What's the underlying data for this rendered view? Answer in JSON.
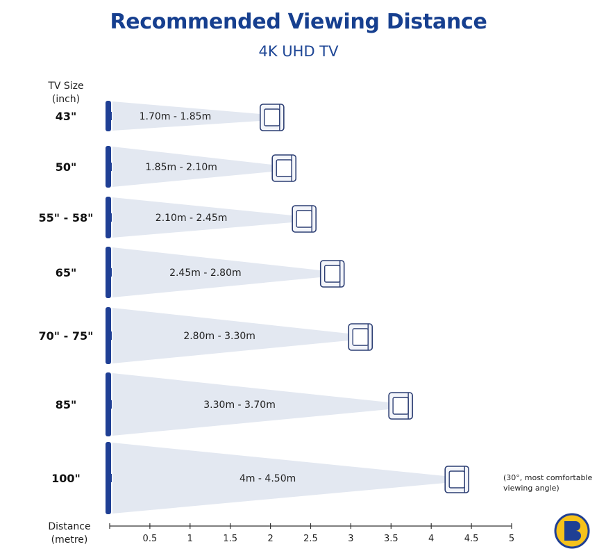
{
  "chart_data": {
    "type": "bar",
    "title": "Recommended Viewing Distance",
    "subtitle": "4K UHD TV",
    "ylabel_lines": [
      "TV Size",
      "(inch)"
    ],
    "xlabel_lines": [
      "Distance",
      "(metre)"
    ],
    "categories": [
      "43\"",
      "50\"",
      "55\" - 58\"",
      "65\"",
      "70\" - 75\"",
      "85\"",
      "100\""
    ],
    "range_labels": [
      "1.70m - 1.85m",
      "1.85m - 2.10m",
      "2.10m - 2.45m",
      "2.45m - 2.80m",
      "2.80m - 3.30m",
      "3.30m - 3.70m",
      "4m - 4.50m"
    ],
    "series": [
      {
        "values_min": [
          1.7,
          1.85,
          2.1,
          2.45,
          2.8,
          3.3,
          4.0
        ]
      },
      {
        "values_max": [
          1.85,
          2.1,
          2.45,
          2.8,
          3.3,
          3.7,
          4.5
        ]
      }
    ],
    "xlim": [
      0,
      5
    ],
    "xticks": [
      "0.5",
      "1",
      "1.5",
      "2",
      "2.5",
      "3",
      "3.5",
      "4",
      "4.5",
      "5"
    ],
    "note_lines": [
      "(30°, most comfortable",
      "viewing angle)"
    ],
    "grid": false,
    "legend": "none"
  },
  "colors": {
    "title": "#163f8f",
    "tv": "#1f3f94",
    "cone": "#e3e8f1",
    "chair_stroke": "#2c3e73",
    "chair_fill": "#f3f5fa",
    "axis": "#333333"
  },
  "icons": {
    "tv": "tv-screen-icon",
    "chair": "armchair-icon",
    "logo": "brand-logo-icon"
  }
}
